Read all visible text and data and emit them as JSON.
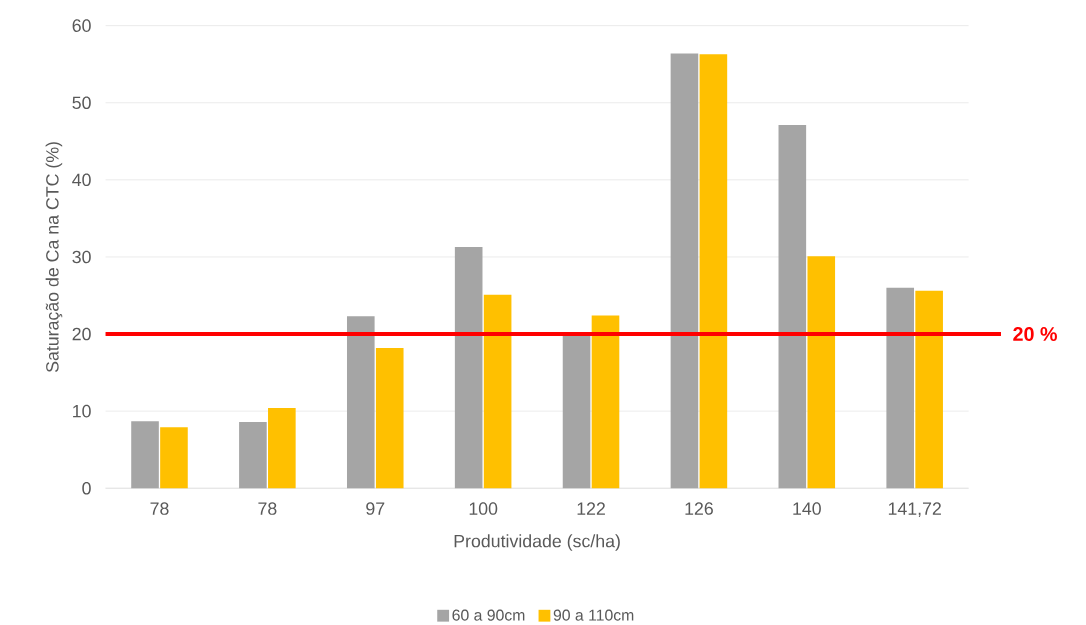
{
  "chart_data": {
    "type": "bar",
    "xlabel": "Produtividade (sc/ha)",
    "ylabel": "Saturação de Ca na CTC (%)",
    "categories": [
      "78",
      "78",
      "97",
      "100",
      "122",
      "126",
      "140",
      "141,72"
    ],
    "series": [
      {
        "name": "60 a 90cm",
        "color": "#a5a5a5",
        "values": [
          8.7,
          8.6,
          22.3,
          31.3,
          20.1,
          56.4,
          47.1,
          26.0
        ]
      },
      {
        "name": "90 a 110cm",
        "color": "#ffc000",
        "values": [
          7.9,
          10.4,
          18.2,
          25.1,
          22.4,
          56.3,
          30.1,
          25.6
        ]
      }
    ],
    "ylim": [
      0,
      60
    ],
    "yticks": [
      0,
      10,
      20,
      30,
      40,
      50,
      60
    ],
    "grid": "y",
    "legend": "bottom",
    "ref_lines": [
      {
        "axis": "y",
        "value": 20,
        "label": "20 %",
        "color": "#ff0000"
      }
    ]
  }
}
